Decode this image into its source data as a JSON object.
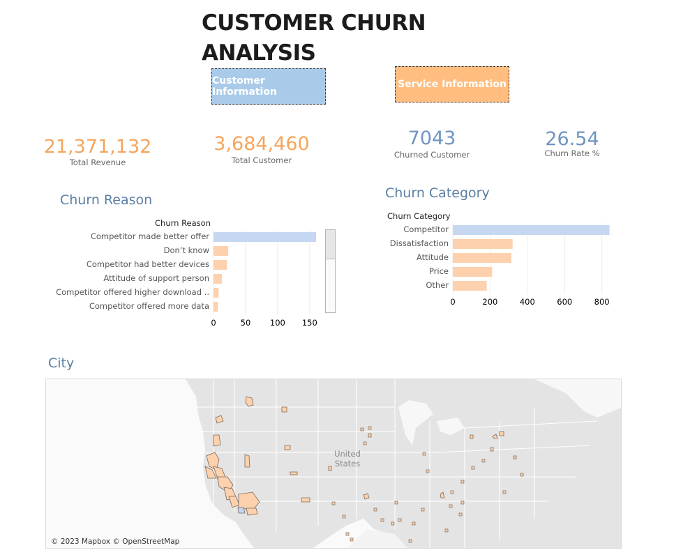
{
  "title": "CUSTOMER CHURN ANALYSIS",
  "nav": {
    "customer_info": "Customer Information",
    "service_info": "Service Information",
    "customer_color": "#a9cbe9",
    "service_color": "#ffbe80"
  },
  "kpis": [
    {
      "value": "21,371,132",
      "label": "Total Revenue",
      "color": "#f5a55c"
    },
    {
      "value": "3,684,460",
      "label": "Total Customer",
      "color": "#f5a55c"
    },
    {
      "value": "7043",
      "label": "Churned Customer",
      "color": "#6f95c1"
    },
    {
      "value": "26.54",
      "label": "Churn Rate %",
      "color": "#6f95c1"
    }
  ],
  "chart_data": [
    {
      "type": "bar",
      "orientation": "horizontal",
      "title": "Churn Reason",
      "header": "Churn Reason",
      "categories": [
        "Competitor made better offer",
        "Don’t know",
        "Competitor had better devices",
        "Attitude of support person",
        "Competitor offered higher download ..",
        "Competitor offered more data"
      ],
      "values": [
        160,
        23,
        21,
        13,
        8,
        7
      ],
      "xlim": [
        0,
        185
      ],
      "ticks": [
        0,
        50,
        100,
        150
      ],
      "highlight_color": "#c6d7f2",
      "bar_color": "#fdd1ad",
      "has_scrollbar": true
    },
    {
      "type": "bar",
      "orientation": "horizontal",
      "title": "Churn Category",
      "header": "Churn Category",
      "categories": [
        "Competitor",
        "Dissatisfaction",
        "Attitude",
        "Price",
        "Other"
      ],
      "values": [
        841,
        321,
        314,
        211,
        182
      ],
      "xlim": [
        0,
        880
      ],
      "ticks": [
        0,
        200,
        400,
        600,
        800
      ],
      "highlight_color": "#c6d7f2",
      "bar_color": "#fdd1ad"
    }
  ],
  "map": {
    "title": "City",
    "country_label_line1": "United",
    "country_label_line2": "States",
    "credit": "© 2023 Mapbox © OpenStreetMap",
    "region_color": "#fdd1ad",
    "highlight_color": "#c6d7f2"
  }
}
